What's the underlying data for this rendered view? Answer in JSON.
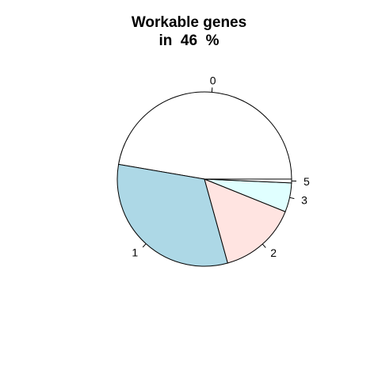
{
  "chart_data": {
    "type": "pie",
    "title_line1": "Workable genes",
    "title_line2": "in  46  %",
    "slices": [
      {
        "label": "0",
        "value": 47.3,
        "color": "#ffffff"
      },
      {
        "label": "1",
        "value": 32.0,
        "color": "#add8e6"
      },
      {
        "label": "2",
        "value": 14.6,
        "color": "#ffe4e1"
      },
      {
        "label": "3",
        "value": 5.4,
        "color": "#e0ffff"
      },
      {
        "label": "5",
        "value": 0.7,
        "color": "#ffffff"
      }
    ],
    "start": "counter-clockwise from 3 o'clock"
  }
}
